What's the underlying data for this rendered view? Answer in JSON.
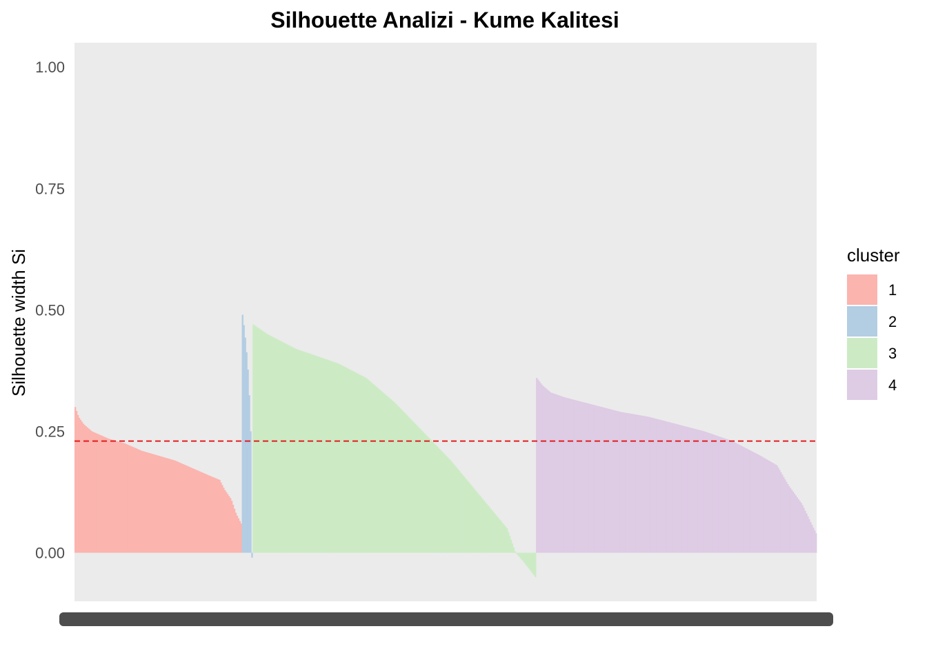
{
  "chart_data": {
    "type": "bar",
    "title": "Silhouette Analizi - Kume Kalitesi",
    "xlabel": "",
    "ylabel": "Silhouette width Si",
    "ylim": [
      -0.1,
      1.05
    ],
    "yticks": [
      0.0,
      0.25,
      0.5,
      0.75,
      1.0
    ],
    "ytick_labels": [
      "0.00",
      "0.25",
      "0.50",
      "0.75",
      "1.00"
    ],
    "average_line": {
      "value": 0.23,
      "color": "#e31a1c",
      "style": "dashed"
    },
    "legend": {
      "title": "cluster",
      "position": "right"
    },
    "grid": false,
    "panel_background": "#ebebeb",
    "series": [
      {
        "name": "1",
        "color": "#fbb4ae",
        "count": 124,
        "profile": [
          [
            0,
            0.3
          ],
          [
            0.02,
            0.28
          ],
          [
            0.05,
            0.265
          ],
          [
            0.1,
            0.25
          ],
          [
            0.2,
            0.235
          ],
          [
            0.3,
            0.225
          ],
          [
            0.4,
            0.21
          ],
          [
            0.5,
            0.2
          ],
          [
            0.6,
            0.19
          ],
          [
            0.7,
            0.175
          ],
          [
            0.8,
            0.16
          ],
          [
            0.87,
            0.15
          ],
          [
            0.9,
            0.13
          ],
          [
            0.94,
            0.11
          ],
          [
            0.97,
            0.08
          ],
          [
            1.0,
            0.06
          ]
        ]
      },
      {
        "name": "2",
        "color": "#b3cde3",
        "count": 8,
        "profile": [
          [
            0,
            0.49
          ],
          [
            0.2,
            0.46
          ],
          [
            0.4,
            0.42
          ],
          [
            0.6,
            0.37
          ],
          [
            0.8,
            0.29
          ],
          [
            0.9,
            0.22
          ],
          [
            1.0,
            -0.01
          ]
        ]
      },
      {
        "name": "3",
        "color": "#ccebc5",
        "count": 210,
        "profile": [
          [
            0,
            0.47
          ],
          [
            0.05,
            0.45
          ],
          [
            0.15,
            0.42
          ],
          [
            0.3,
            0.39
          ],
          [
            0.4,
            0.36
          ],
          [
            0.5,
            0.31
          ],
          [
            0.6,
            0.25
          ],
          [
            0.7,
            0.19
          ],
          [
            0.8,
            0.12
          ],
          [
            0.9,
            0.05
          ],
          [
            0.93,
            0.0
          ],
          [
            0.96,
            -0.02
          ],
          [
            1.0,
            -0.05
          ]
        ]
      },
      {
        "name": "4",
        "color": "#decbe4",
        "count": 208,
        "profile": [
          [
            0,
            0.36
          ],
          [
            0.02,
            0.345
          ],
          [
            0.05,
            0.33
          ],
          [
            0.1,
            0.32
          ],
          [
            0.2,
            0.305
          ],
          [
            0.3,
            0.29
          ],
          [
            0.4,
            0.28
          ],
          [
            0.5,
            0.265
          ],
          [
            0.6,
            0.25
          ],
          [
            0.7,
            0.23
          ],
          [
            0.8,
            0.2
          ],
          [
            0.86,
            0.18
          ],
          [
            0.9,
            0.14
          ],
          [
            0.95,
            0.1
          ],
          [
            1.0,
            0.04
          ]
        ]
      }
    ]
  }
}
